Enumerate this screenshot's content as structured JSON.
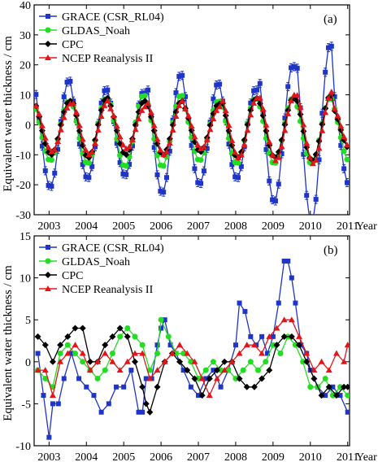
{
  "figure": {
    "ylabel": "Equivalent  water  thickness / cm",
    "xunit": "Year",
    "colors": {
      "grace": "#1f35c8",
      "gldas": "#22dd22",
      "cpc": "#000000",
      "ncep": "#e0161c"
    }
  },
  "chart_data": [
    {
      "type": "line",
      "panel_label": "(a)",
      "xlabel": "Year",
      "ylabel": "Equivalent  water  thickness / cm",
      "xlim": [
        2002.6,
        2011.05
      ],
      "ylim": [
        -30,
        40
      ],
      "xticks": [
        2003,
        2004,
        2005,
        2006,
        2007,
        2008,
        2009,
        2010,
        2011
      ],
      "yticks": [
        -30,
        -20,
        -10,
        0,
        10,
        20,
        30,
        40
      ],
      "legend": "top-left",
      "series": [
        {
          "name": "GRACE (CSR_RL04)",
          "key": "grace",
          "marker": "square",
          "error_bars": true,
          "amplitude": 16,
          "mean": -3,
          "phase": 0.28,
          "amp_by_year": [
            18,
            15,
            14,
            20,
            17,
            15,
            23,
            30,
            17
          ]
        },
        {
          "name": "GLDAS_Noah",
          "key": "gldas",
          "marker": "circle",
          "error_bars": false,
          "amplitude": 11,
          "mean": -2,
          "phase": 0.28,
          "amp_by_year": [
            10,
            11,
            12,
            12,
            10,
            11,
            11,
            11,
            10
          ]
        },
        {
          "name": "CPC",
          "key": "cpc",
          "marker": "diamond",
          "error_bars": false,
          "amplitude": 9,
          "mean": -1,
          "phase": 0.3,
          "amp_by_year": [
            9,
            10,
            9,
            9,
            8,
            10,
            10,
            11,
            7
          ]
        },
        {
          "name": "NCEP Reanalysis II",
          "key": "ncep",
          "marker": "triangle",
          "error_bars": false,
          "amplitude": 8,
          "mean": -1,
          "phase": 0.33,
          "amp_by_year": [
            8,
            9,
            7,
            9,
            7,
            10,
            11,
            12,
            7
          ]
        }
      ]
    },
    {
      "type": "line",
      "panel_label": "(b)",
      "xlabel": "Year",
      "ylabel": "Equivalent  water  thickness / cm",
      "xlim": [
        2002.6,
        2011.05
      ],
      "ylim": [
        -10,
        15
      ],
      "xticks": [
        2003,
        2004,
        2005,
        2006,
        2007,
        2008,
        2009,
        2010,
        2011
      ],
      "yticks": [
        -10,
        -5,
        0,
        5,
        10,
        15
      ],
      "legend": "top-left",
      "series": [
        {
          "name": "GRACE (CSR_RL04)",
          "key": "grace",
          "marker": "square",
          "x": [
            2002.7,
            2002.85,
            2003.0,
            2003.1,
            2003.25,
            2003.4,
            2003.6,
            2003.8,
            2004.0,
            2004.2,
            2004.4,
            2004.6,
            2004.8,
            2005.0,
            2005.2,
            2005.4,
            2005.5,
            2005.6,
            2005.75,
            2005.9,
            2006.0,
            2006.1,
            2006.25,
            2006.4,
            2006.6,
            2006.8,
            2007.0,
            2007.2,
            2007.4,
            2007.6,
            2007.8,
            2008.0,
            2008.1,
            2008.25,
            2008.4,
            2008.55,
            2008.7,
            2008.85,
            2009.0,
            2009.15,
            2009.3,
            2009.4,
            2009.5,
            2009.6,
            2009.75,
            2009.9,
            2010.0,
            2010.2,
            2010.4,
            2010.6,
            2010.8,
            2011.0
          ],
          "y": [
            1,
            -4,
            -9,
            -5,
            -5,
            -2,
            1,
            -2,
            -3,
            -4,
            -6,
            -5,
            -3,
            -3,
            -1,
            -6,
            -6,
            -2,
            -2,
            2,
            4,
            5,
            2,
            1,
            -1,
            -3,
            -4,
            -2,
            -1,
            -3,
            -1,
            2,
            7,
            6,
            3,
            2,
            3,
            1,
            3,
            7,
            12,
            12,
            10,
            7,
            2,
            1,
            -1,
            -3,
            -4,
            -3,
            -4,
            -6
          ]
        },
        {
          "name": "GLDAS_Noah",
          "key": "gldas",
          "marker": "circle",
          "x": [
            2002.7,
            2002.9,
            2003.1,
            2003.3,
            2003.5,
            2003.7,
            2003.9,
            2004.1,
            2004.3,
            2004.5,
            2004.7,
            2004.9,
            2005.1,
            2005.3,
            2005.5,
            2005.7,
            2005.9,
            2006.0,
            2006.2,
            2006.4,
            2006.6,
            2006.8,
            2007.0,
            2007.2,
            2007.4,
            2007.6,
            2007.8,
            2008.0,
            2008.2,
            2008.4,
            2008.6,
            2008.8,
            2009.0,
            2009.2,
            2009.4,
            2009.6,
            2009.8,
            2010.0,
            2010.2,
            2010.4,
            2010.6,
            2010.8,
            2011.0
          ],
          "y": [
            -1,
            -2,
            -3,
            1,
            2,
            1,
            0,
            -1,
            -2,
            -1,
            1,
            3,
            4,
            3,
            2,
            -1,
            1,
            5,
            3,
            1,
            1,
            0,
            -2,
            -1,
            0,
            -1,
            -1,
            -2,
            -1,
            0,
            -1,
            0,
            2,
            1,
            3,
            2,
            0,
            -3,
            -3,
            -2,
            -4,
            -3,
            -4
          ]
        },
        {
          "name": "CPC",
          "key": "cpc",
          "marker": "diamond",
          "x": [
            2002.7,
            2002.9,
            2003.1,
            2003.3,
            2003.5,
            2003.7,
            2003.9,
            2004.1,
            2004.3,
            2004.5,
            2004.7,
            2004.9,
            2005.1,
            2005.3,
            2005.5,
            2005.6,
            2005.7,
            2005.9,
            2006.1,
            2006.3,
            2006.5,
            2006.7,
            2006.9,
            2007.1,
            2007.3,
            2007.5,
            2007.7,
            2007.9,
            2008.1,
            2008.3,
            2008.5,
            2008.7,
            2008.9,
            2009.1,
            2009.3,
            2009.5,
            2009.7,
            2009.9,
            2010.1,
            2010.3,
            2010.5,
            2010.7,
            2010.9,
            2011.0
          ],
          "y": [
            3,
            2,
            0,
            2,
            3,
            4,
            4,
            0,
            0,
            2,
            3,
            4,
            3,
            0,
            -3,
            -5,
            -6,
            -3,
            0,
            1,
            0,
            -1,
            -2,
            -4,
            -2,
            -1,
            0,
            0,
            -2,
            -3,
            -3,
            -2,
            -1,
            2,
            3,
            3,
            2,
            0,
            -2,
            -4,
            -3,
            -4,
            -3,
            -3
          ]
        },
        {
          "name": "NCEP Reanalysis II",
          "key": "ncep",
          "marker": "triangle",
          "x": [
            2002.7,
            2002.9,
            2003.1,
            2003.3,
            2003.5,
            2003.7,
            2003.9,
            2004.1,
            2004.3,
            2004.5,
            2004.7,
            2004.9,
            2005.1,
            2005.3,
            2005.5,
            2005.7,
            2005.9,
            2006.1,
            2006.3,
            2006.5,
            2006.7,
            2006.9,
            2007.1,
            2007.3,
            2007.5,
            2007.7,
            2007.9,
            2008.1,
            2008.3,
            2008.5,
            2008.7,
            2008.9,
            2009.1,
            2009.3,
            2009.5,
            2009.7,
            2009.9,
            2010.1,
            2010.3,
            2010.5,
            2010.7,
            2010.9,
            2011.0
          ],
          "y": [
            -1,
            -1,
            -4,
            0,
            1,
            2,
            1,
            -1,
            0,
            1,
            0,
            -1,
            0,
            1,
            1,
            -2,
            -1,
            0,
            1,
            2,
            1,
            0,
            -2,
            -4,
            -2,
            -1,
            0,
            1,
            2,
            2,
            1,
            3,
            4,
            5,
            5,
            3,
            1,
            -1,
            0,
            -1,
            1,
            0,
            2
          ]
        }
      ]
    }
  ]
}
